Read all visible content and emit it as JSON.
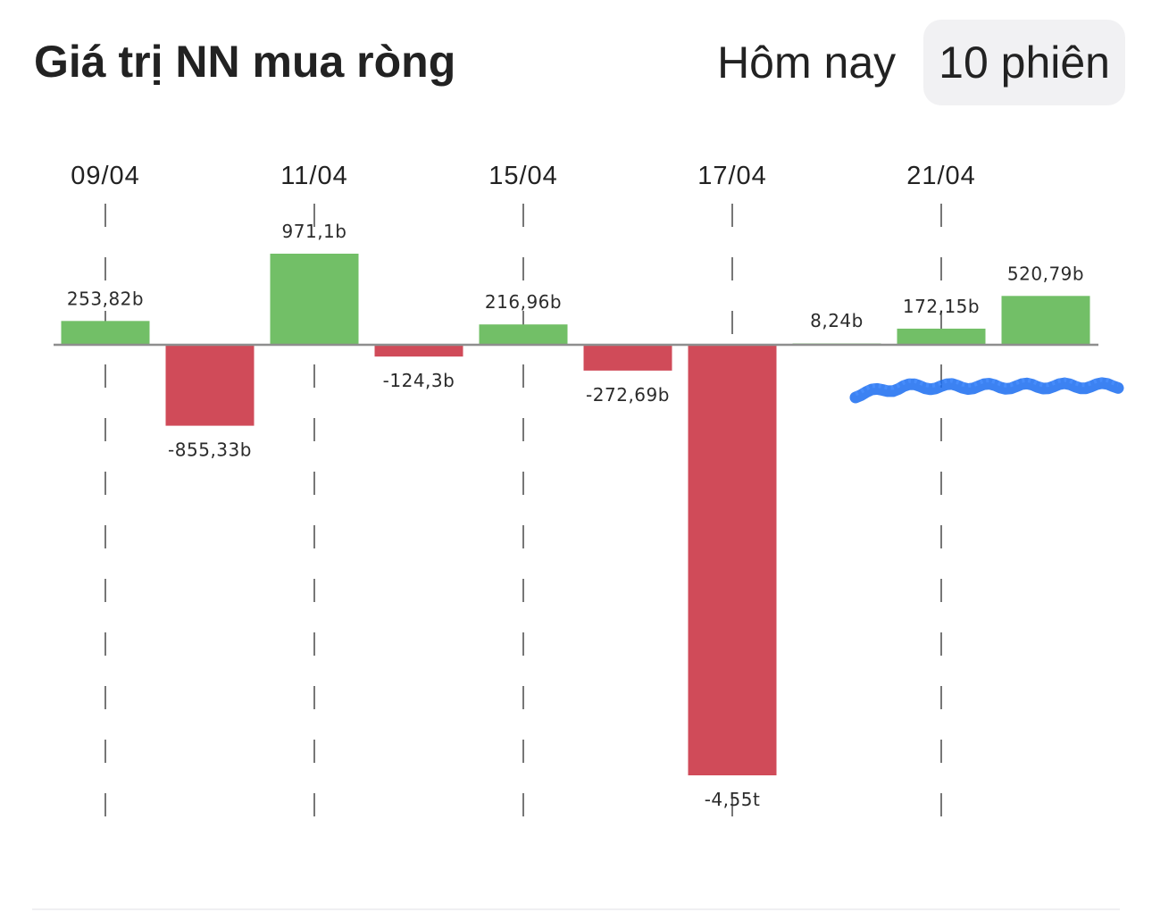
{
  "header": {
    "title": "Giá trị NN mua ròng",
    "tabs": [
      {
        "label": "Hôm nay",
        "active": false
      },
      {
        "label": "10 phiên",
        "active": true
      }
    ]
  },
  "chart_data": {
    "type": "bar",
    "title": "",
    "xlabel": "",
    "ylabel": "",
    "grid": "dashed vertical lines at labeled dates",
    "legend": "none",
    "colors": {
      "positive": "#72bf67",
      "negative": "#d04b59",
      "axis": "#8e8e8e",
      "grid": "#555555"
    },
    "x_tick_labels": [
      "09/04",
      "11/04",
      "15/04",
      "17/04",
      "21/04"
    ],
    "x_tick_bar_index": [
      0,
      2,
      4,
      6,
      8
    ],
    "values": [
      253.82,
      -855.33,
      971.1,
      -124.3,
      216.96,
      -272.69,
      -4550,
      8.24,
      172.15,
      520.79
    ],
    "value_labels": [
      "253,82b",
      "-855,33b",
      "971,1b",
      "-124,3b",
      "216,96b",
      "-272,69b",
      "-4,55t",
      "8,24b",
      "172,15b",
      "520,79b"
    ],
    "units": "b = tỷ (billion VND), t = nghìn tỷ (trillion VND)",
    "ylim": [
      -4550,
      971.1
    ]
  }
}
